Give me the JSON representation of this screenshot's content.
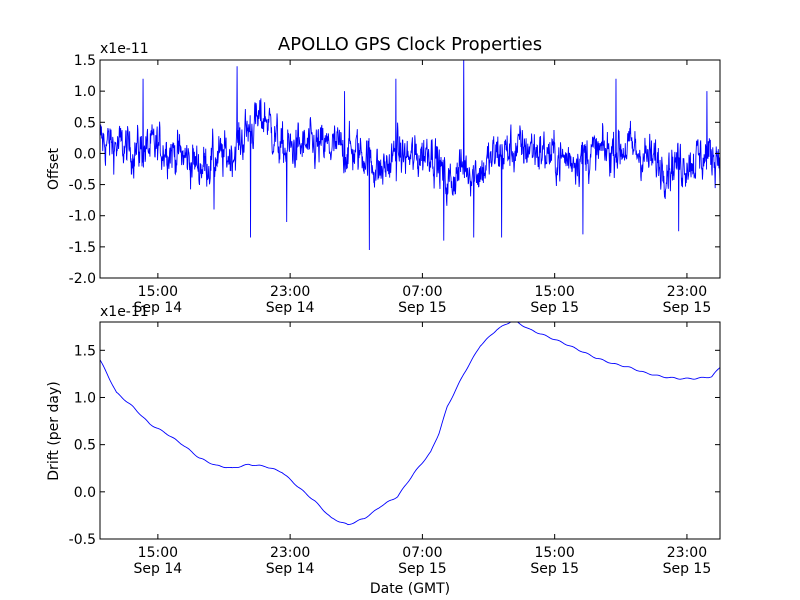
{
  "figure": {
    "title": "APOLLO GPS Clock Properties"
  },
  "chart_data": [
    {
      "type": "line",
      "title": "APOLLO GPS Clock Properties",
      "ylabel": "Offset",
      "xlabel": "",
      "scale_label": "x1e-11",
      "ylim": [
        -2.0,
        1.5
      ],
      "xlim": [
        "Sep 14 11:30",
        "Sep 16 00:30"
      ],
      "yticks": [
        "1.5",
        "1.0",
        "0.5",
        "0.0",
        "-0.5",
        "-1.0",
        "-1.5",
        "-2.0"
      ],
      "xticks": [
        {
          "time": "15:00",
          "date": "Sep 14"
        },
        {
          "time": "23:00",
          "date": "Sep 14"
        },
        {
          "time": "07:00",
          "date": "Sep 15"
        },
        {
          "time": "15:00",
          "date": "Sep 15"
        },
        {
          "time": "23:00",
          "date": "Sep 15"
        }
      ],
      "color": "#0000ff",
      "note": "noisy time series, values in units of 1e-11",
      "envelope": {
        "x_hours_from_start": [
          0,
          2,
          4,
          6,
          8,
          9,
          10,
          11,
          12,
          14,
          16,
          17,
          18,
          19,
          20,
          21,
          22,
          23,
          24,
          26,
          28,
          30,
          32,
          34,
          36,
          37.5
        ],
        "mean": [
          0.2,
          0.05,
          0.1,
          -0.2,
          0.0,
          0.4,
          0.6,
          0.05,
          0.1,
          0.1,
          0.0,
          -0.3,
          0.0,
          -0.1,
          0.1,
          -0.5,
          -0.2,
          -0.3,
          0.0,
          0.1,
          -0.1,
          0.0,
          0.1,
          -0.2,
          -0.1,
          0.0
        ],
        "spikes": [
          {
            "x": 2.6,
            "y": 1.2
          },
          {
            "x": 6.9,
            "y": -0.9
          },
          {
            "x": 8.3,
            "y": 1.4
          },
          {
            "x": 9.1,
            "y": -1.35
          },
          {
            "x": 11.3,
            "y": -1.1
          },
          {
            "x": 14.8,
            "y": 1.0
          },
          {
            "x": 16.3,
            "y": -1.55
          },
          {
            "x": 17.9,
            "y": 1.2
          },
          {
            "x": 20.8,
            "y": -1.4
          },
          {
            "x": 22.0,
            "y": 1.6
          },
          {
            "x": 22.6,
            "y": -1.35
          },
          {
            "x": 24.3,
            "y": -1.35
          },
          {
            "x": 29.2,
            "y": -1.3
          },
          {
            "x": 31.2,
            "y": 1.2
          },
          {
            "x": 35.0,
            "y": -1.25
          },
          {
            "x": 36.7,
            "y": 1.0
          }
        ]
      }
    },
    {
      "type": "line",
      "title": "",
      "ylabel": "Drift (per day)",
      "xlabel": "Date (GMT)",
      "scale_label": "x1e-11",
      "ylim": [
        -0.5,
        1.8
      ],
      "xlim": [
        "Sep 14 11:30",
        "Sep 16 00:30"
      ],
      "yticks": [
        "1.5",
        "1.0",
        "0.5",
        "0.0",
        "-0.5"
      ],
      "xticks": [
        {
          "time": "15:00",
          "date": "Sep 14"
        },
        {
          "time": "23:00",
          "date": "Sep 14"
        },
        {
          "time": "07:00",
          "date": "Sep 15"
        },
        {
          "time": "15:00",
          "date": "Sep 15"
        },
        {
          "time": "23:00",
          "date": "Sep 15"
        }
      ],
      "color": "#0000ff",
      "series": [
        {
          "x_hours_from_start": [
            0,
            1,
            2,
            3,
            4,
            5,
            6,
            7,
            8,
            9,
            10,
            11,
            12,
            13,
            14,
            15,
            16,
            16.5,
            17,
            18,
            19,
            20,
            20.5,
            21,
            22,
            23,
            24,
            25,
            26,
            27,
            28,
            29,
            30,
            31,
            32,
            33,
            34,
            35,
            36,
            37,
            37.5
          ],
          "values": [
            1.4,
            1.05,
            0.9,
            0.72,
            0.62,
            0.5,
            0.36,
            0.28,
            0.25,
            0.29,
            0.27,
            0.21,
            0.05,
            -0.1,
            -0.28,
            -0.35,
            -0.28,
            -0.22,
            -0.15,
            -0.05,
            0.2,
            0.42,
            0.62,
            0.9,
            1.25,
            1.55,
            1.72,
            1.82,
            1.72,
            1.65,
            1.58,
            1.5,
            1.42,
            1.36,
            1.32,
            1.26,
            1.22,
            1.2,
            1.2,
            1.22,
            1.32
          ]
        }
      ]
    }
  ]
}
